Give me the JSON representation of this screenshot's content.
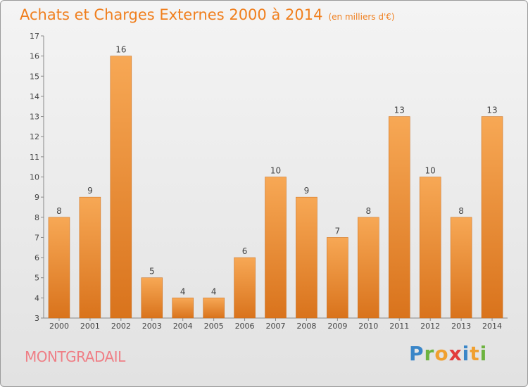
{
  "title": "Achats et Charges Externes 2000 à 2014",
  "subtitle": "(en milliers d'€)",
  "commune": "MONTGRADAIL",
  "logo": {
    "text": "Proxiti"
  },
  "colors": {
    "title": "#f07f1e",
    "bar_light": "#f7a855",
    "bar_dark": "#d9731c",
    "commune": "#ef7f86"
  },
  "chart_data": {
    "type": "bar",
    "categories": [
      "2000",
      "2001",
      "2002",
      "2003",
      "2004",
      "2005",
      "2006",
      "2007",
      "2008",
      "2009",
      "2010",
      "2011",
      "2012",
      "2013",
      "2014"
    ],
    "values": [
      8,
      9,
      16,
      5,
      4,
      4,
      6,
      10,
      9,
      7,
      8,
      13,
      10,
      8,
      13
    ],
    "ylim": [
      3,
      17
    ],
    "yticks": [
      3,
      4,
      5,
      6,
      7,
      8,
      9,
      10,
      11,
      12,
      13,
      14,
      15,
      16,
      17
    ],
    "grid": false
  }
}
